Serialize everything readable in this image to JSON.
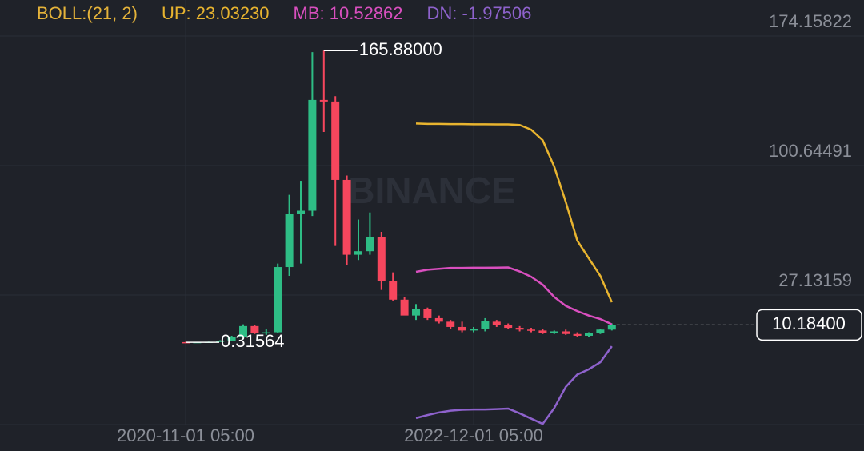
{
  "chart_data": {
    "type": "candlestick",
    "indicator": "BOLL:(21, 2)",
    "watermark": "BINANCE",
    "categories": [
      "2020-11-01 05:00",
      null,
      null,
      null,
      null,
      null,
      null,
      null,
      null,
      null,
      null,
      null,
      null,
      null,
      null,
      null,
      null,
      null,
      null,
      null,
      null,
      null,
      null,
      null,
      null,
      "2022-12-01 05:00",
      null,
      null,
      null,
      null,
      null,
      null,
      null,
      null,
      null,
      null,
      null,
      null
    ],
    "open": [
      0.4,
      0.35,
      0.45,
      0.6,
      1.2,
      3.5,
      9.5,
      5.5,
      6,
      43,
      73,
      75,
      137.9,
      137,
      92.5,
      50,
      52,
      60,
      35,
      24.5,
      15.5,
      19,
      14,
      12,
      9,
      7,
      8,
      12,
      10,
      8.5,
      7.5,
      7,
      5.5,
      6.5,
      5,
      4,
      5.5,
      7.5
    ],
    "high": [
      0.5,
      0.5,
      0.7,
      1.5,
      4,
      10.5,
      10,
      8,
      45,
      84,
      92,
      165,
      165.88,
      140,
      95,
      70,
      74,
      63,
      40,
      26,
      22,
      20,
      15.5,
      13,
      12,
      9,
      14,
      13,
      11,
      9.5,
      8.5,
      8,
      7,
      7.5,
      6,
      6,
      8,
      11
    ],
    "low": [
      0.31564,
      0.3,
      0.4,
      0.5,
      1.0,
      3,
      5,
      4.5,
      5.5,
      38,
      45,
      72,
      119.7,
      55,
      44,
      47,
      50,
      30,
      24,
      16,
      13,
      13,
      11,
      8,
      6,
      6,
      6.5,
      9,
      8,
      6.5,
      6,
      5,
      5,
      4.5,
      3.5,
      3.5,
      5,
      7
    ],
    "close": [
      0.35,
      0.45,
      0.6,
      1.2,
      3.5,
      9.5,
      5.5,
      6,
      43,
      73,
      75,
      137.9,
      137,
      92.5,
      50,
      52,
      60,
      35,
      24.5,
      15.5,
      19,
      14,
      12,
      9,
      7,
      8,
      12.5,
      10,
      8.5,
      7.5,
      7,
      5.5,
      6.5,
      5,
      4,
      5.5,
      7.5,
      10.184
    ],
    "up_color": "#2ebd85",
    "down_color": "#f6465d",
    "series": [
      {
        "name": "UP: 23.03230",
        "color": "#e8b42f",
        "values": [
          null,
          null,
          null,
          null,
          null,
          null,
          null,
          null,
          null,
          null,
          null,
          null,
          null,
          null,
          null,
          null,
          null,
          null,
          null,
          null,
          124.5,
          124.3,
          124.3,
          124.2,
          124.2,
          124.1,
          124.1,
          124.0,
          124.0,
          123.7,
          121,
          115,
          100,
          80,
          58,
          48,
          38,
          23.0323
        ]
      },
      {
        "name": "MB: 10.52862",
        "color": "#d94fbf",
        "values": [
          null,
          null,
          null,
          null,
          null,
          null,
          null,
          null,
          null,
          null,
          null,
          null,
          null,
          null,
          null,
          null,
          null,
          null,
          null,
          null,
          40.3,
          41.5,
          42,
          42.5,
          42.5,
          42.6,
          42.6,
          42.7,
          42.8,
          40.5,
          37.5,
          33,
          26,
          21,
          18,
          15.5,
          13.5,
          10.52862
        ]
      },
      {
        "name": "DN: -1.97506",
        "color": "#8e62cc",
        "values": [
          null,
          null,
          null,
          null,
          null,
          null,
          null,
          null,
          null,
          null,
          null,
          null,
          null,
          null,
          null,
          null,
          null,
          null,
          null,
          null,
          -42.7,
          -41,
          -39.5,
          -38.5,
          -38,
          -37.8,
          -37.8,
          -37.6,
          -37.3,
          -40,
          -43,
          -46,
          -37,
          -25,
          -18,
          -15,
          -11,
          -1.97506
        ]
      }
    ],
    "ylim": [
      -46.38,
      194.58
    ],
    "yticks": [
      174.15822,
      100.64491,
      27.13159
    ],
    "annotations": [
      {
        "value": 165.88,
        "label": "165.88000"
      },
      {
        "value": 0.31564,
        "label": "0.31564"
      }
    ],
    "last_price": {
      "value": 10.184,
      "label": "10.18400"
    },
    "grid": true
  }
}
